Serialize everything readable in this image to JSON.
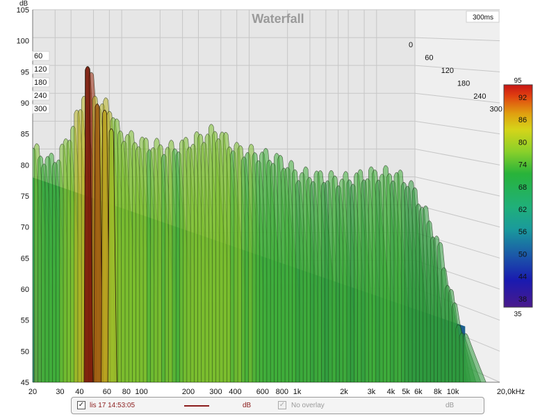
{
  "chart_data": {
    "type": "area",
    "title": "Waterfall",
    "time_label": "300ms",
    "ylabel": "dB",
    "ylim": [
      45,
      105
    ],
    "y_ticks": [
      "45",
      "50",
      "55",
      "60",
      "65",
      "70",
      "75",
      "80",
      "85",
      "90",
      "95",
      "100",
      "105"
    ],
    "x_ticks": [
      {
        "label": "20",
        "f": 20
      },
      {
        "label": "30",
        "f": 30
      },
      {
        "label": "40",
        "f": 40
      },
      {
        "label": "60",
        "f": 60
      },
      {
        "label": "80",
        "f": 80
      },
      {
        "label": "100",
        "f": 100
      },
      {
        "label": "200",
        "f": 200
      },
      {
        "label": "300",
        "f": 300
      },
      {
        "label": "400",
        "f": 400
      },
      {
        "label": "600",
        "f": 600
      },
      {
        "label": "800",
        "f": 800
      },
      {
        "label": "1k",
        "f": 1000
      },
      {
        "label": "2k",
        "f": 2000
      },
      {
        "label": "3k",
        "f": 3000
      },
      {
        "label": "4k",
        "f": 4000
      },
      {
        "label": "5k",
        "f": 5000
      },
      {
        "label": "6k",
        "f": 6000
      },
      {
        "label": "8k",
        "f": 8000
      },
      {
        "label": "10k",
        "f": 10000
      },
      {
        "label": "20,0kHz",
        "f": 20000
      }
    ],
    "time_ticks_left": [
      "60",
      "120",
      "180",
      "240",
      "300"
    ],
    "time_ticks_right": [
      "0",
      "60",
      "120",
      "180",
      "240",
      "300"
    ],
    "colorbar": {
      "max": "95",
      "min": "35",
      "ticks": [
        "92",
        "86",
        "80",
        "74",
        "68",
        "62",
        "56",
        "50",
        "44",
        "38"
      ]
    },
    "envelope_front": [
      {
        "f": 20,
        "db": 83
      },
      {
        "f": 25,
        "db": 81
      },
      {
        "f": 30,
        "db": 82
      },
      {
        "f": 35,
        "db": 86
      },
      {
        "f": 40,
        "db": 89
      },
      {
        "f": 45,
        "db": 96
      },
      {
        "f": 50,
        "db": 92
      },
      {
        "f": 55,
        "db": 89
      },
      {
        "f": 60,
        "db": 91
      },
      {
        "f": 70,
        "db": 86
      },
      {
        "f": 80,
        "db": 85
      },
      {
        "f": 100,
        "db": 84
      },
      {
        "f": 150,
        "db": 83
      },
      {
        "f": 200,
        "db": 84
      },
      {
        "f": 300,
        "db": 86
      },
      {
        "f": 400,
        "db": 83
      },
      {
        "f": 600,
        "db": 82
      },
      {
        "f": 800,
        "db": 81
      },
      {
        "f": 1000,
        "db": 79
      },
      {
        "f": 2000,
        "db": 78
      },
      {
        "f": 3000,
        "db": 79
      },
      {
        "f": 4000,
        "db": 79
      },
      {
        "f": 5000,
        "db": 78
      },
      {
        "f": 6000,
        "db": 75
      },
      {
        "f": 8000,
        "db": 68
      },
      {
        "f": 10000,
        "db": 58
      },
      {
        "f": 12000,
        "db": 52
      }
    ]
  },
  "legend": {
    "measurement_label": "lis 17 14:53:05",
    "measurement_unit": "dB",
    "overlay_label": "No overlay",
    "overlay_unit": "dB",
    "checked_mark": "✓"
  },
  "colors": {
    "accent": "#8b1c1c",
    "background": "#ffffff",
    "wall": "#e8e8e8",
    "grid": "#c6c6c6"
  }
}
